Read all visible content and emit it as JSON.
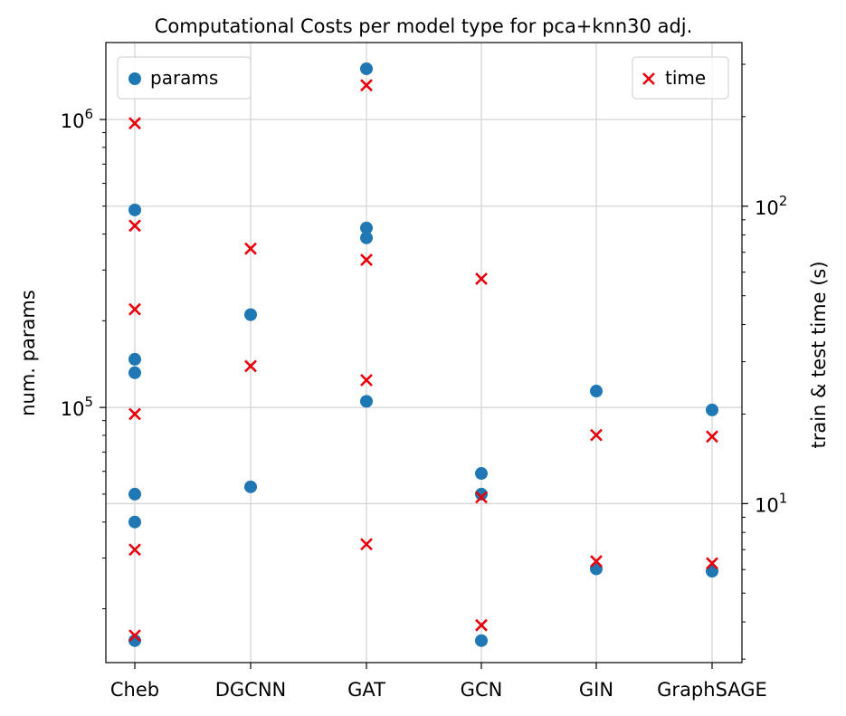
{
  "chart_data": {
    "type": "scatter",
    "title": "Computational Costs per model type for pca+knn30 adj.",
    "categories": [
      "Cheb",
      "DGCNN",
      "GAT",
      "GCN",
      "GIN",
      "GraphSAGE"
    ],
    "left_axis": {
      "label": "num. params",
      "scale": "log",
      "range": [
        13000,
        1850000
      ],
      "ticks": [
        {
          "value": 100000,
          "base": "10",
          "exp": "5"
        },
        {
          "value": 1000000,
          "base": "10",
          "exp": "6"
        }
      ]
    },
    "right_axis": {
      "label": "train & test time (s)",
      "scale": "log",
      "range": [
        2.92,
        355
      ],
      "ticks": [
        {
          "value": 10,
          "base": "10",
          "exp": "1"
        },
        {
          "value": 100,
          "base": "10",
          "exp": "2"
        }
      ]
    },
    "grid": true,
    "series": [
      {
        "name": "params",
        "axis": "left",
        "marker": "circle",
        "color": "#1f77b4",
        "points": [
          {
            "x": "Cheb",
            "y": 485000
          },
          {
            "x": "Cheb",
            "y": 147000
          },
          {
            "x": "Cheb",
            "y": 132000
          },
          {
            "x": "Cheb",
            "y": 50000
          },
          {
            "x": "Cheb",
            "y": 40000
          },
          {
            "x": "Cheb",
            "y": 15500
          },
          {
            "x": "DGCNN",
            "y": 210000
          },
          {
            "x": "DGCNN",
            "y": 53000
          },
          {
            "x": "GAT",
            "y": 1500000
          },
          {
            "x": "GAT",
            "y": 420000
          },
          {
            "x": "GAT",
            "y": 388000
          },
          {
            "x": "GAT",
            "y": 105000
          },
          {
            "x": "GCN",
            "y": 59000
          },
          {
            "x": "GCN",
            "y": 50000
          },
          {
            "x": "GCN",
            "y": 15500
          },
          {
            "x": "GIN",
            "y": 114000
          },
          {
            "x": "GIN",
            "y": 27500
          },
          {
            "x": "GraphSAGE",
            "y": 98000
          },
          {
            "x": "GraphSAGE",
            "y": 27000
          }
        ]
      },
      {
        "name": "time",
        "axis": "right",
        "marker": "x",
        "color": "#e8000b",
        "points": [
          {
            "x": "Cheb",
            "y": 190
          },
          {
            "x": "Cheb",
            "y": 86
          },
          {
            "x": "Cheb",
            "y": 45
          },
          {
            "x": "Cheb",
            "y": 20
          },
          {
            "x": "Cheb",
            "y": 7
          },
          {
            "x": "Cheb",
            "y": 3.6
          },
          {
            "x": "DGCNN",
            "y": 72
          },
          {
            "x": "DGCNN",
            "y": 29
          },
          {
            "x": "GAT",
            "y": 255
          },
          {
            "x": "GAT",
            "y": 66
          },
          {
            "x": "GAT",
            "y": 26
          },
          {
            "x": "GAT",
            "y": 7.3
          },
          {
            "x": "GCN",
            "y": 57
          },
          {
            "x": "GCN",
            "y": 10.5
          },
          {
            "x": "GCN",
            "y": 3.9
          },
          {
            "x": "GIN",
            "y": 17
          },
          {
            "x": "GIN",
            "y": 6.4
          },
          {
            "x": "GraphSAGE",
            "y": 16.8
          },
          {
            "x": "GraphSAGE",
            "y": 6.3
          }
        ]
      }
    ],
    "legends": [
      {
        "series": "params",
        "placement": "top-left"
      },
      {
        "series": "time",
        "placement": "top-right"
      }
    ]
  }
}
